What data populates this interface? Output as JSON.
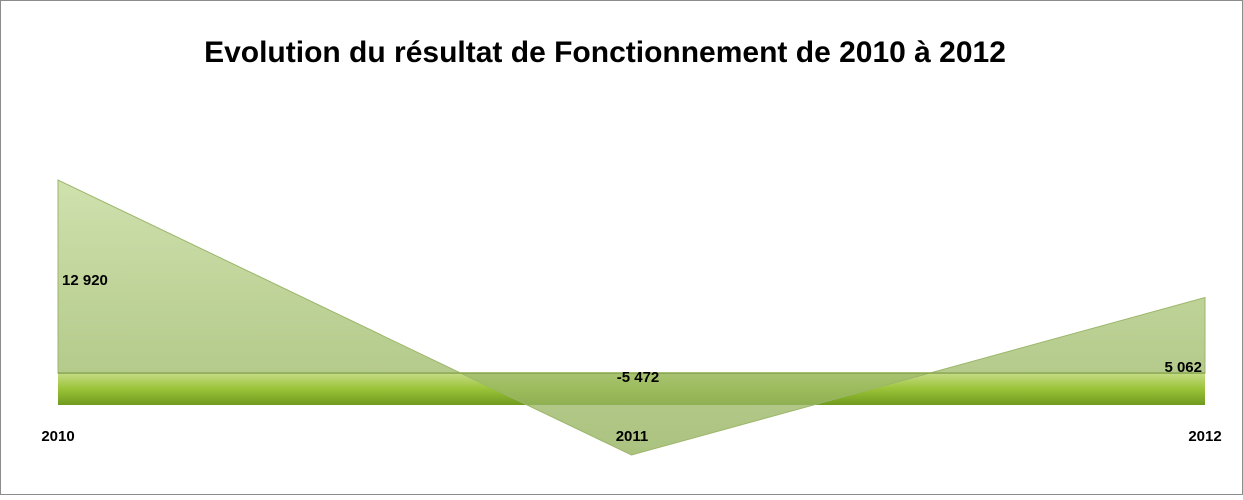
{
  "chart_data": {
    "type": "area",
    "title": "Evolution du résultat de Fonctionnement de  2010 à 2012",
    "categories": [
      "2010",
      "2011",
      "2012"
    ],
    "values": [
      12920,
      -5472,
      5062
    ],
    "value_labels": [
      "12 920",
      "-5 472",
      "5 062"
    ],
    "color": "#9bbb59"
  }
}
